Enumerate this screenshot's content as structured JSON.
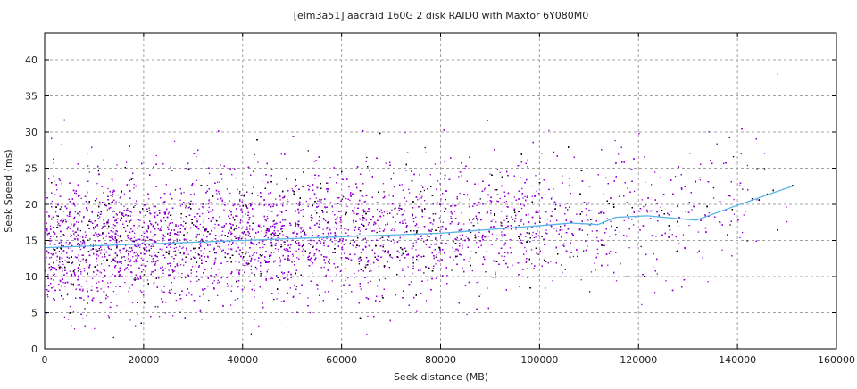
{
  "chart_data": {
    "type": "scatter",
    "title": "[elm3a51] aacraid 160G 2 disk RAID0 with Maxtor 6Y080M0",
    "xlabel": "Seek distance (MB)",
    "ylabel": "Seek Speed (ms)",
    "xlim": [
      0,
      160000
    ],
    "ylim": [
      0,
      43.7
    ],
    "xticks": [
      0,
      20000,
      40000,
      60000,
      80000,
      100000,
      120000,
      140000,
      160000
    ],
    "yticks": [
      0,
      5,
      10,
      15,
      20,
      25,
      30,
      35,
      40
    ],
    "grid": true,
    "legend": "none",
    "colors": {
      "points_primary": "#9400d3",
      "points_secondary": "#000000",
      "trend": "#56b4e9",
      "grid": "#a0a0a0"
    },
    "scatter_description": {
      "x_range": [
        0,
        152000
      ],
      "y_typical_range": [
        5,
        30
      ],
      "density": "highest at small seek distances, thinning toward 150000"
    },
    "trend_line": {
      "x": [
        0,
        20000,
        40000,
        60000,
        80000,
        99200,
        106400,
        111800,
        115400,
        121750,
        131650,
        138900,
        151500
      ],
      "y": [
        14.0,
        14.5,
        15.0,
        15.5,
        16.0,
        17.0,
        17.4,
        17.2,
        18.2,
        18.4,
        17.8,
        19.6,
        22.6
      ]
    }
  }
}
